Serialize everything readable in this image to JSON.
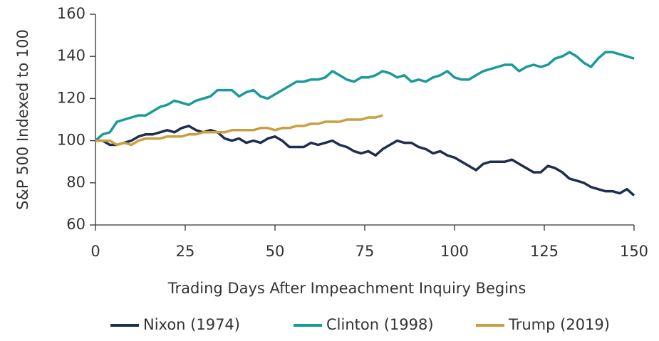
{
  "chart_data": {
    "type": "line",
    "x_label": "Trading Days After Impeachment Inquiry Begins",
    "y_label": "S&P 500 Indexed to 100",
    "x": [
      0,
      2,
      4,
      6,
      8,
      10,
      12,
      14,
      16,
      18,
      20,
      22,
      24,
      26,
      28,
      30,
      32,
      34,
      36,
      38,
      40,
      42,
      44,
      46,
      48,
      50,
      52,
      54,
      56,
      58,
      60,
      62,
      64,
      66,
      68,
      70,
      72,
      74,
      76,
      78,
      80,
      82,
      84,
      86,
      88,
      90,
      92,
      94,
      96,
      98,
      100,
      102,
      104,
      106,
      108,
      110,
      112,
      114,
      116,
      118,
      120,
      122,
      124,
      126,
      128,
      130,
      132,
      134,
      136,
      138,
      140,
      142,
      144,
      146,
      148,
      150
    ],
    "series": [
      {
        "name": "Nixon (1974)",
        "color": "#1f2d4e",
        "values": [
          100,
          100,
          98,
          98,
          99,
          100,
          102,
          103,
          103,
          104,
          105,
          104,
          106,
          107,
          105,
          104,
          105,
          104,
          101,
          100,
          101,
          99,
          100,
          99,
          101,
          102,
          100,
          97,
          97,
          97,
          99,
          98,
          99,
          100,
          98,
          97,
          95,
          94,
          95,
          93,
          96,
          98,
          100,
          99,
          99,
          97,
          96,
          94,
          95,
          93,
          92,
          90,
          88,
          86,
          89,
          90,
          90,
          90,
          91,
          89,
          87,
          85,
          85,
          88,
          87,
          85,
          82,
          81,
          80,
          78,
          77,
          76,
          76,
          75,
          77,
          74
        ]
      },
      {
        "name": "Clinton (1998)",
        "color": "#1a9a99",
        "values": [
          100,
          103,
          104,
          109,
          110,
          111,
          112,
          112,
          114,
          116,
          117,
          119,
          118,
          117,
          119,
          120,
          121,
          124,
          124,
          124,
          121,
          123,
          124,
          121,
          120,
          122,
          124,
          126,
          128,
          128,
          129,
          129,
          130,
          133,
          131,
          129,
          128,
          130,
          130,
          131,
          133,
          132,
          130,
          131,
          128,
          129,
          128,
          130,
          131,
          133,
          130,
          129,
          129,
          131,
          133,
          134,
          135,
          136,
          136,
          133,
          135,
          136,
          135,
          136,
          139,
          140,
          142,
          140,
          137,
          135,
          139,
          142,
          142,
          141,
          140,
          139
        ]
      },
      {
        "name": "Trump (2019)",
        "color": "#c9a03f",
        "values": [
          100,
          100,
          100,
          98,
          99,
          98,
          100,
          101,
          101,
          101,
          102,
          102,
          102,
          103,
          103,
          104,
          104,
          104,
          104,
          105,
          105,
          105,
          105,
          106,
          106,
          105,
          106,
          106,
          107,
          107,
          108,
          108,
          109,
          109,
          109,
          110,
          110,
          110,
          111,
          111,
          112,
          null,
          null,
          null,
          null,
          null,
          null,
          null,
          null,
          null,
          null,
          null,
          null,
          null,
          null,
          null,
          null,
          null,
          null,
          null,
          null,
          null,
          null,
          null,
          null,
          null,
          null,
          null,
          null,
          null,
          null,
          null,
          null,
          null,
          null,
          null
        ]
      }
    ],
    "xlim": [
      0,
      150
    ],
    "xticks": [
      0,
      25,
      50,
      75,
      100,
      125,
      150
    ],
    "ylim": [
      60,
      160
    ],
    "yticks": [
      60,
      80,
      100,
      120,
      140,
      160
    ],
    "grid": false,
    "legend": "bottom"
  }
}
